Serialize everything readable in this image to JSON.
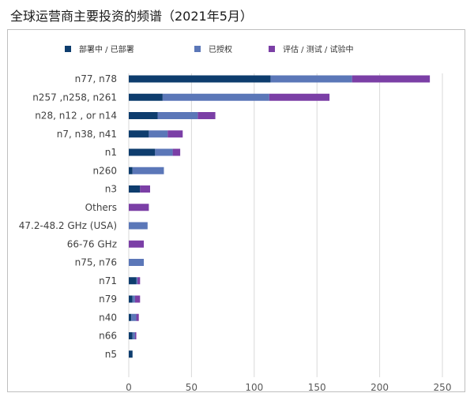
{
  "page_title": "全球运营商主要投资的频谱（2021年5月）",
  "chart_data": {
    "type": "bar",
    "orientation": "horizontal",
    "stacked": true,
    "categories": [
      "n77, n78",
      "n257 ,n258, n261",
      "n28, n12 , or n14",
      "n7, n38, n41",
      "n1",
      "n260",
      "n3",
      "Others",
      "47.2-48.2 GHz (USA)",
      "66-76 GHz",
      "n75, n76",
      "n71",
      "n79",
      "n40",
      "n66",
      "n5"
    ],
    "series": [
      {
        "name": "部署中 / 已部署",
        "color": "#0e3d6e",
        "values": [
          113,
          27,
          23,
          16,
          21,
          3,
          9,
          0,
          0,
          0,
          0,
          6,
          3,
          2,
          3,
          3
        ]
      },
      {
        "name": "已授权",
        "color": "#5b77b8",
        "values": [
          65,
          85,
          32,
          15,
          14,
          25,
          0,
          0,
          15,
          0,
          12,
          1,
          2,
          4,
          2,
          0
        ]
      },
      {
        "name": "评估 / 测试 / 试验中",
        "color": "#7b3fa6",
        "values": [
          62,
          48,
          14,
          12,
          6,
          0,
          8,
          16,
          0,
          12,
          0,
          2,
          4,
          2,
          1,
          0
        ]
      }
    ],
    "xticks": [
      0,
      50,
      100,
      150,
      200,
      250
    ],
    "xlim": [
      0,
      250
    ],
    "grid": true,
    "legend_position": "top"
  }
}
